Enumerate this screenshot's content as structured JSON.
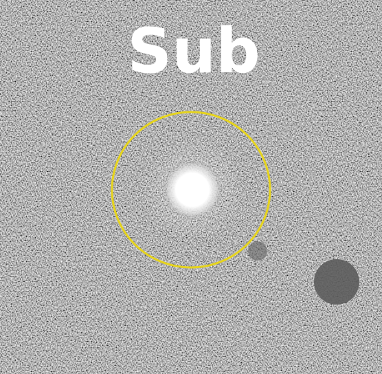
{
  "image": {
    "label": "Sub"
  }
}
